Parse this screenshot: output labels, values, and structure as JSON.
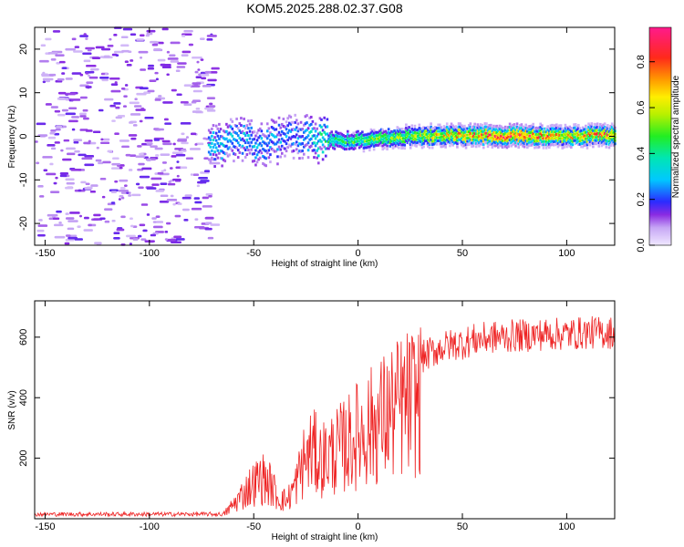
{
  "title": "KOM5.2025.288.02.37.G08",
  "chart_data": [
    {
      "type": "heatmap",
      "title": "KOM5.2025.288.02.37.G08",
      "xlabel": "Height of straight line (km)",
      "ylabel": "Frequency (Hz)",
      "xlim": [
        -155,
        123
      ],
      "ylim": [
        -25,
        25
      ],
      "xticks": [
        -150,
        -100,
        -50,
        0,
        50,
        100
      ],
      "yticks": [
        -20,
        -10,
        0,
        10,
        20
      ],
      "colorbar": {
        "label": "Normalized spectral amplitude",
        "range": [
          0,
          0.95
        ],
        "ticks": [
          0.0,
          0.2,
          0.4,
          0.6,
          0.8
        ]
      },
      "description_points": [
        {
          "x": -70,
          "y": -2,
          "v": 0.35
        },
        {
          "x": -60,
          "y": -1,
          "v": 0.3
        },
        {
          "x": -45,
          "y": -2,
          "v": 0.3
        },
        {
          "x": -30,
          "y": 0,
          "v": 0.25
        },
        {
          "x": -20,
          "y": -1,
          "v": 0.4
        },
        {
          "x": 0,
          "y": -1,
          "v": 0.5
        },
        {
          "x": 25,
          "y": 0,
          "v": 0.6
        },
        {
          "x": 50,
          "y": 0,
          "v": 0.75
        },
        {
          "x": 75,
          "y": 0,
          "v": 0.9
        },
        {
          "x": 100,
          "y": 0,
          "v": 0.7
        },
        {
          "x": 120,
          "y": 0,
          "v": 0.8
        }
      ]
    },
    {
      "type": "line",
      "xlabel": "Height of straight line (km)",
      "ylabel": "SNR (v/v)",
      "xlim": [
        -155,
        123
      ],
      "ylim": [
        0,
        720
      ],
      "xticks": [
        -150,
        -100,
        -50,
        0,
        50,
        100
      ],
      "yticks": [
        200,
        400,
        600
      ],
      "color": "#ee2222",
      "envelope_x": [
        -155,
        -70,
        -65,
        -62,
        -58,
        -52,
        -46,
        -42,
        -38,
        -34,
        -30,
        -26,
        -22,
        -18,
        -14,
        -10,
        -5,
        0,
        5,
        10,
        15,
        20,
        25,
        30,
        35,
        40,
        45,
        50,
        55,
        60,
        65,
        70,
        75,
        80,
        90,
        100,
        110,
        123
      ],
      "envelope_y": [
        15,
        15,
        15,
        40,
        80,
        140,
        180,
        150,
        90,
        80,
        150,
        250,
        300,
        260,
        280,
        300,
        330,
        370,
        400,
        430,
        460,
        490,
        510,
        530,
        550,
        565,
        575,
        580,
        590,
        595,
        600,
        600,
        605,
        605,
        610,
        610,
        615,
        615
      ]
    }
  ]
}
